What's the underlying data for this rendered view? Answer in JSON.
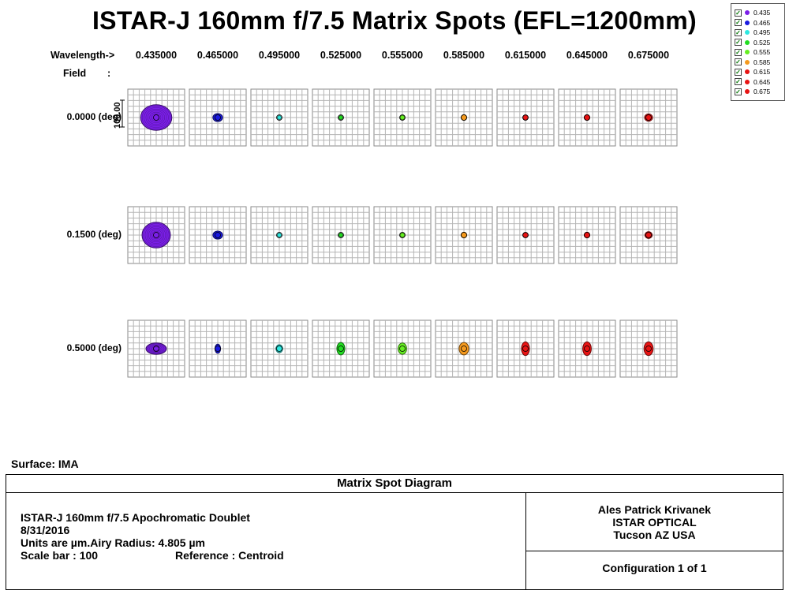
{
  "title": "ISTAR-J 160mm f/7.5 Matrix Spots (EFL=1200mm)",
  "header": {
    "wavelength_label": "Wavelength->",
    "field_label": "Field",
    "field_colon": ":"
  },
  "wavelengths": [
    "0.435000",
    "0.465000",
    "0.495000",
    "0.525000",
    "0.555000",
    "0.585000",
    "0.615000",
    "0.645000",
    "0.675000"
  ],
  "fields": [
    "0.0000 (deg)",
    "0.1500 (deg)",
    "0.5000 (deg)"
  ],
  "scale_bar_label": "100.00",
  "legend": [
    {
      "label": "0.435",
      "color": "#7b1fe8",
      "checked": true
    },
    {
      "label": "0.465",
      "color": "#1a1ae0",
      "checked": true
    },
    {
      "label": "0.495",
      "color": "#2de8e0",
      "checked": true
    },
    {
      "label": "0.525",
      "color": "#22dd22",
      "checked": true
    },
    {
      "label": "0.555",
      "color": "#66ee22",
      "checked": true
    },
    {
      "label": "0.585",
      "color": "#f59a1e",
      "checked": true
    },
    {
      "label": "0.615",
      "color": "#e81414",
      "checked": true
    },
    {
      "label": "0.645",
      "color": "#e81414",
      "checked": true
    },
    {
      "label": "0.675",
      "color": "#e81414",
      "checked": true
    }
  ],
  "spot_colors": [
    "#7b1fe8",
    "#1a1ae0",
    "#2de8e0",
    "#22dd22",
    "#66ee22",
    "#f59a1e",
    "#e81414",
    "#e81414",
    "#e81414"
  ],
  "spot_sizes_um": [
    [
      [
        55,
        45
      ],
      [
        17,
        14
      ],
      [
        7,
        7
      ],
      [
        7,
        7
      ],
      [
        8,
        8
      ],
      [
        10,
        10
      ],
      [
        9,
        9
      ],
      [
        10,
        10
      ],
      [
        14,
        13
      ]
    ],
    [
      [
        50,
        45
      ],
      [
        17,
        14
      ],
      [
        7,
        7
      ],
      [
        7,
        7
      ],
      [
        8,
        8
      ],
      [
        10,
        10
      ],
      [
        9,
        9
      ],
      [
        10,
        10
      ],
      [
        13,
        12
      ]
    ],
    [
      [
        36,
        20
      ],
      [
        10,
        16
      ],
      [
        12,
        14
      ],
      [
        14,
        22
      ],
      [
        15,
        20
      ],
      [
        17,
        22
      ],
      [
        14,
        24
      ],
      [
        15,
        24
      ],
      [
        16,
        24
      ]
    ]
  ],
  "surface": "Surface: IMA",
  "footer": {
    "heading": "Matrix Spot Diagram",
    "line1": "ISTAR-J 160mm f/7.5 Apochromatic Doublet",
    "line2": "8/31/2016",
    "line3": "Units are µm.Airy Radius: 4.805 µm",
    "line4a": "Scale bar : 100",
    "line4b": "Reference  : Centroid",
    "author1": "Ales Patrick Krivanek",
    "author2": "ISTAR OPTICAL",
    "author3": "Tucson  AZ   USA",
    "config": "Configuration 1 of 1"
  }
}
